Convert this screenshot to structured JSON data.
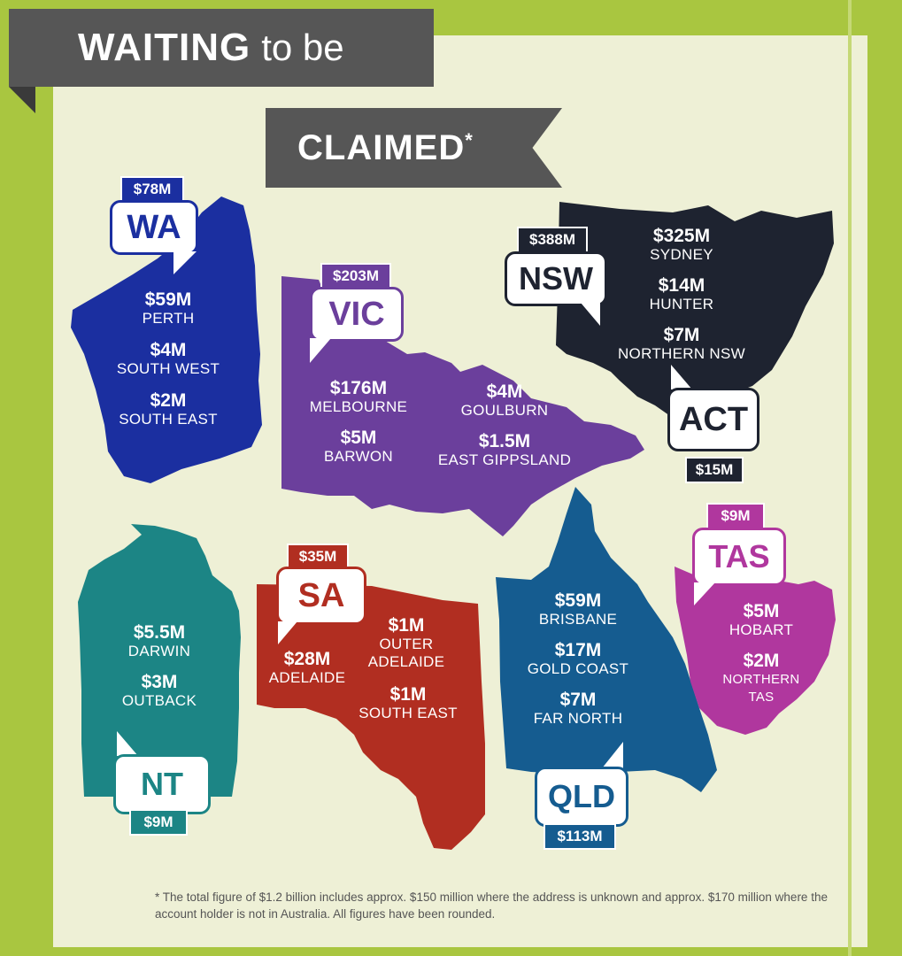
{
  "title": {
    "line1_bold": "WAITING",
    "line1_rest": "to be",
    "line2": "CLAIMED",
    "asterisk": "*"
  },
  "colors": {
    "background": "#a9c640",
    "panel": "#eef0d6",
    "wa": "#1b2fa0",
    "vic": "#6b3f9c",
    "nsw": "#1e2330",
    "nt": "#1c8585",
    "sa": "#b12e21",
    "qld": "#155c90",
    "tas": "#b0379e"
  },
  "states": {
    "wa": {
      "label": "WA",
      "total": "$78M",
      "regions": [
        {
          "value": "$59M",
          "name": "PERTH"
        },
        {
          "value": "$4M",
          "name": "SOUTH WEST"
        },
        {
          "value": "$2M",
          "name": "SOUTH EAST"
        }
      ]
    },
    "vic": {
      "label": "VIC",
      "total": "$203M",
      "regions": [
        {
          "value": "$176M",
          "name": "MELBOURNE"
        },
        {
          "value": "$5M",
          "name": "BARWON"
        },
        {
          "value": "$4M",
          "name": "GOULBURN"
        },
        {
          "value": "$1.5M",
          "name": "EAST GIPPSLAND"
        }
      ]
    },
    "nsw": {
      "label": "NSW",
      "total": "$388M",
      "regions": [
        {
          "value": "$325M",
          "name": "SYDNEY"
        },
        {
          "value": "$14M",
          "name": "HUNTER"
        },
        {
          "value": "$7M",
          "name": "NORTHERN NSW"
        }
      ]
    },
    "act": {
      "label": "ACT",
      "total": "$15M"
    },
    "nt": {
      "label": "NT",
      "total": "$9M",
      "regions": [
        {
          "value": "$5.5M",
          "name": "DARWIN"
        },
        {
          "value": "$3M",
          "name": "OUTBACK"
        }
      ]
    },
    "sa": {
      "label": "SA",
      "total": "$35M",
      "regions": [
        {
          "value": "$28M",
          "name": "ADELAIDE"
        },
        {
          "value": "$1M",
          "name": "OUTER ADELAIDE"
        },
        {
          "value": "$1M",
          "name": "SOUTH EAST"
        }
      ]
    },
    "qld": {
      "label": "QLD",
      "total": "$113M",
      "regions": [
        {
          "value": "$59M",
          "name": "BRISBANE"
        },
        {
          "value": "$17M",
          "name": "GOLD COAST"
        },
        {
          "value": "$7M",
          "name": "FAR NORTH"
        }
      ]
    },
    "tas": {
      "label": "TAS",
      "total": "$9M",
      "regions": [
        {
          "value": "$5M",
          "name": "HOBART"
        },
        {
          "value": "$2M",
          "name": "NORTHERN TAS"
        }
      ]
    }
  },
  "footnote": "* The total figure of $1.2 billion includes approx. $150 million where the address is unknown and approx. $170 million where the account holder is not in Australia.  All figures have been rounded."
}
